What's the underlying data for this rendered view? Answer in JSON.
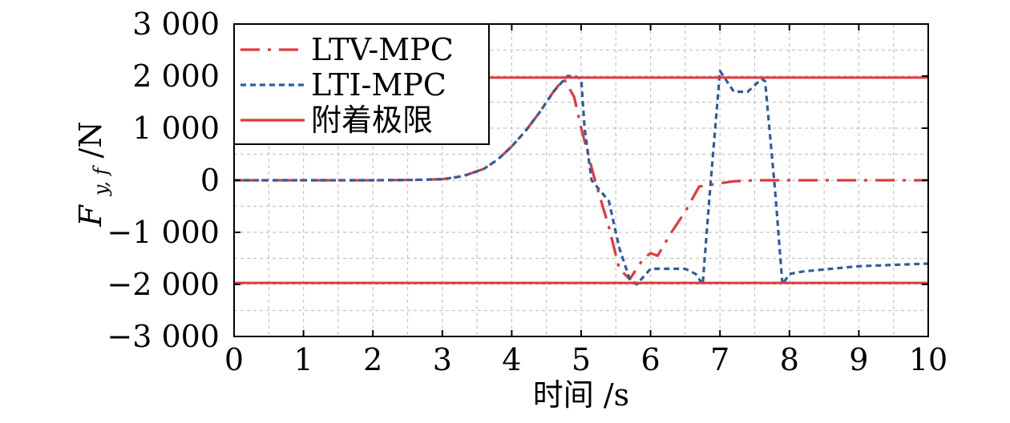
{
  "chart_data": {
    "type": "line",
    "title": "",
    "xlabel": "时间 /s",
    "ylabel": "F_{y,f} /N",
    "ylabel_main": "F",
    "ylabel_subscript": "y, f",
    "ylabel_unit": " /N",
    "xlim": [
      0,
      10
    ],
    "ylim": [
      -3000,
      3000
    ],
    "x_ticks": [
      0,
      1,
      2,
      3,
      4,
      5,
      6,
      7,
      8,
      9,
      10
    ],
    "x_tick_labels": [
      "0",
      "1",
      "2",
      "3",
      "4",
      "5",
      "6",
      "7",
      "8",
      "9",
      "10"
    ],
    "y_ticks": [
      3000,
      2000,
      1000,
      0,
      -1000,
      -2000,
      -3000
    ],
    "y_tick_labels": [
      "3 000",
      "2 000",
      "1 000",
      "0",
      "−1 000",
      "−2 000",
      "−3 000"
    ],
    "grid": true,
    "legend_position": "top-left",
    "series": [
      {
        "name": "LTV-MPC",
        "color": "#e0393e",
        "style": "dashdot",
        "x": [
          0,
          1,
          2,
          2.5,
          3,
          3.3,
          3.6,
          3.8,
          4.0,
          4.2,
          4.4,
          4.6,
          4.75,
          4.9,
          5.0,
          5.2,
          5.4,
          5.55,
          5.7,
          5.8,
          5.9,
          6.0,
          6.1,
          6.3,
          6.5,
          6.7,
          6.8,
          7.0,
          7.2,
          7.5,
          8.0,
          9.0,
          10.0
        ],
        "y": [
          0,
          0,
          0,
          5,
          20,
          80,
          220,
          400,
          650,
          950,
          1300,
          1700,
          1950,
          1600,
          1000,
          0,
          -900,
          -1700,
          -1900,
          -1700,
          -1500,
          -1400,
          -1450,
          -1000,
          -600,
          -120,
          -100,
          -60,
          -20,
          0,
          0,
          0,
          0
        ]
      },
      {
        "name": "LTI-MPC",
        "color": "#2e5c9e",
        "style": "dotted",
        "x": [
          0,
          1,
          2,
          2.5,
          3,
          3.3,
          3.6,
          3.8,
          4.0,
          4.2,
          4.4,
          4.6,
          4.8,
          4.9,
          5.0,
          5.05,
          5.15,
          5.4,
          5.55,
          5.7,
          5.8,
          6.0,
          6.3,
          6.5,
          6.65,
          6.75,
          6.85,
          7.0,
          7.2,
          7.4,
          7.6,
          7.65,
          7.8,
          7.9,
          8.0,
          8.2,
          9.0,
          10.0
        ],
        "y": [
          0,
          0,
          0,
          5,
          20,
          80,
          220,
          400,
          650,
          950,
          1300,
          1700,
          2000,
          2000,
          1950,
          1000,
          0,
          -400,
          -1300,
          -1900,
          -2000,
          -1700,
          -1700,
          -1700,
          -1800,
          -2000,
          -300,
          2100,
          1700,
          1700,
          1950,
          1900,
          -300,
          -2000,
          -1800,
          -1750,
          -1650,
          -1600
        ]
      },
      {
        "name": "附着极限",
        "color": "#e0393e",
        "style": "solid",
        "x": [
          0,
          10
        ],
        "y": [
          1970,
          1970
        ]
      },
      {
        "name": "",
        "color": "#e0393e",
        "style": "solid",
        "x": [
          0,
          10
        ],
        "y": [
          -1970,
          -1970
        ]
      }
    ]
  }
}
